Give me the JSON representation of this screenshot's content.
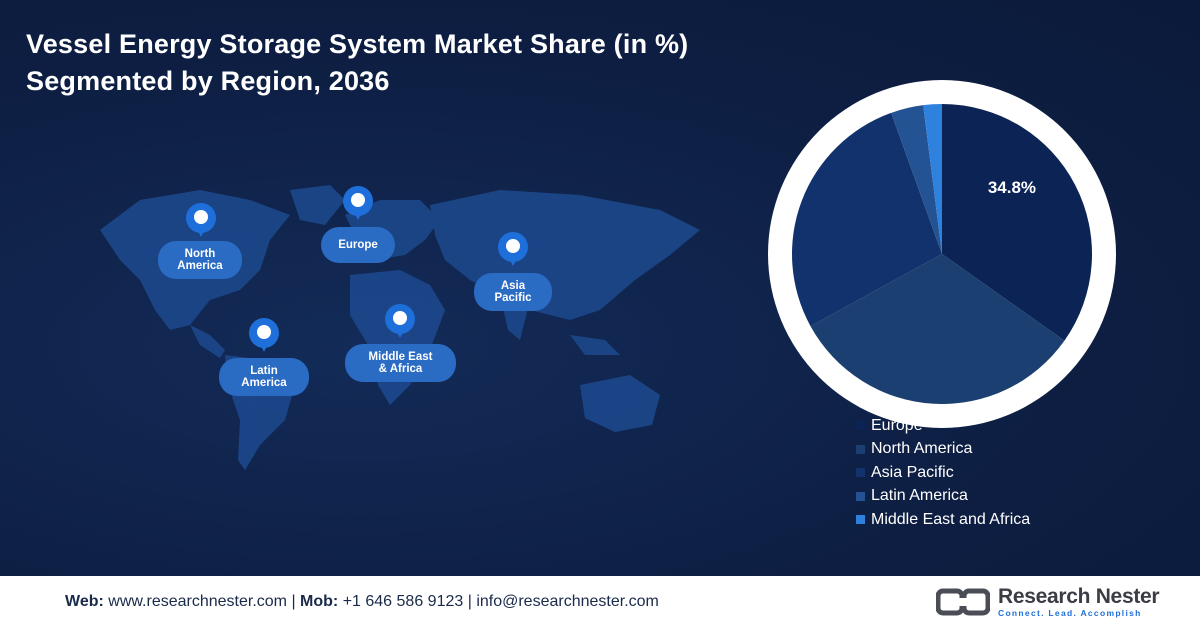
{
  "title_line1": "Vessel Energy Storage System Market Share (in %)",
  "title_line2": "Segmented by Region, 2036",
  "map_regions": [
    {
      "id": "north-america",
      "label": "North\nAmerica"
    },
    {
      "id": "europe",
      "label": "Europe"
    },
    {
      "id": "asia-pacific",
      "label": "Asia\nPacific"
    },
    {
      "id": "latin-america",
      "label": "Latin\nAmerica"
    },
    {
      "id": "middle-east-africa",
      "label": "Middle East\n& Africa"
    }
  ],
  "chart_data": {
    "type": "pie",
    "title": "Vessel Energy Storage System Market Share (in %) Segmented by Region, 2036",
    "categories": [
      "Europe",
      "North America",
      "Asia Pacific",
      "Latin America",
      "Middle East and Africa"
    ],
    "values": [
      34.8,
      32.2,
      27.5,
      3.5,
      2.0
    ],
    "colors": [
      "#0c2356",
      "#1a3f70",
      "#11326d",
      "#245394",
      "#2f81de"
    ],
    "data_labels": [
      "34.8%",
      "",
      "",
      "",
      ""
    ],
    "legend_position": "bottom-right"
  },
  "footer": {
    "web_label": "Web:",
    "web_value": " www.researchnester.com",
    "sep1": " | ",
    "mob_label": "Mob:",
    "mob_value": " +1 646 586 9123",
    "sep2": " | ",
    "email_value": "info@researchnester.com"
  },
  "logo": {
    "name": "Research Nester",
    "tagline": "Connect. Lead. Accomplish"
  }
}
